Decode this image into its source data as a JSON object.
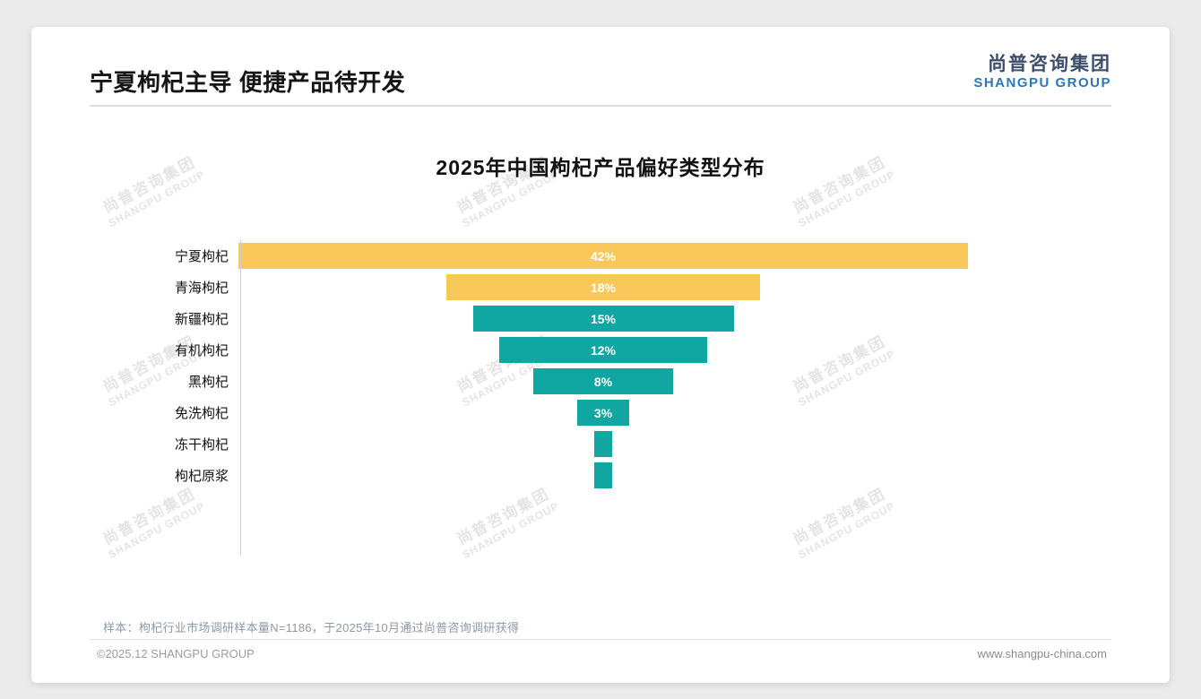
{
  "page": {
    "title": "宁夏枸杞主导 便捷产品待开发",
    "logo": {
      "cn": "尚普咨询集团",
      "en": "SHANGPU GROUP"
    },
    "watermark": {
      "line1": "尚普咨询集团",
      "line2": "SHANGPU GROUP"
    },
    "sample_note": "样本：枸杞行业市场调研样本量N=1186，于2025年10月通过尚普咨询调研获得",
    "footer": {
      "left": "©2025.12 SHANGPU GROUP",
      "right": "www.shangpu-china.com"
    }
  },
  "chart_data": {
    "type": "bar",
    "variant": "horizontal-centered-funnel",
    "title": "2025年中国枸杞产品偏好类型分布",
    "categories": [
      "宁夏枸杞",
      "青海枸杞",
      "新疆枸杞",
      "有机枸杞",
      "黑枸杞",
      "免洗枸杞",
      "冻干枸杞",
      "枸杞原浆"
    ],
    "values": [
      42,
      18,
      15,
      12,
      8,
      3,
      1,
      1
    ],
    "labels": [
      "42%",
      "18%",
      "15%",
      "12%",
      "8%",
      "3%",
      "",
      ""
    ],
    "unit": "%",
    "bar_colors": [
      "#FAC858",
      "#FAC858",
      "#10A7A2",
      "#10A7A2",
      "#10A7A2",
      "#10A7A2",
      "#10A7A2",
      "#10A7A2"
    ],
    "colors": {
      "highlight": "#FAC858",
      "default": "#10A7A2",
      "label_text": "#FFFFFF"
    },
    "xlim": [
      0,
      50
    ],
    "grid": false,
    "legend": false
  }
}
